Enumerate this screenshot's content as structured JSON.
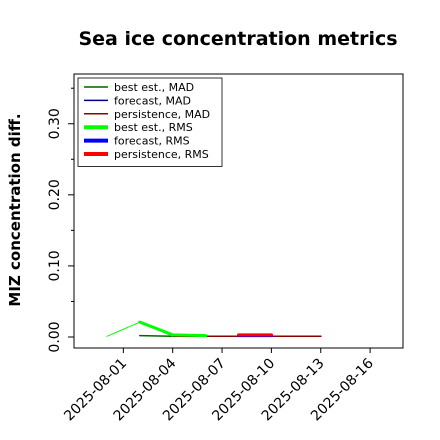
{
  "chart_data": {
    "type": "line",
    "title": "Sea ice concentration metrics",
    "ylabel": "MIZ concentration diff.",
    "xlabel": "",
    "ylim": [
      0.0,
      0.37
    ],
    "xlim": [
      "2025-07-29",
      "2025-08-18"
    ],
    "yticks": [
      "0.00",
      "0.10",
      "0.20",
      "0.30"
    ],
    "xticks": [
      "2025-08-01",
      "2025-08-04",
      "2025-08-07",
      "2025-08-10",
      "2025-08-13",
      "2025-08-16"
    ],
    "highlighted_xtick": "2025-08-07",
    "highlighted_xtick_color": "#008000",
    "grid": false,
    "legend_position": "top-left",
    "series": [
      {
        "name": "best est., MAD",
        "color": "#006400",
        "width": 1.5,
        "x": [
          "2025-08-02",
          "2025-08-04"
        ],
        "y": [
          0.002,
          0.001
        ]
      },
      {
        "name": "forecast,  MAD",
        "color": "#00008b",
        "width": 1.5,
        "x": [
          "2025-08-08",
          "2025-08-13"
        ],
        "y": [
          0.001,
          0.001
        ]
      },
      {
        "name": "persistence, MAD",
        "color": "#8b0000",
        "width": 1.5,
        "x": [
          "2025-08-04",
          "2025-08-13"
        ],
        "y": [
          0.001,
          0.001
        ]
      },
      {
        "name": "best est., RMS",
        "color": "#00ff00",
        "width": 3,
        "x": [
          "2025-08-02",
          "2025-08-04",
          "2025-08-06"
        ],
        "y": [
          0.021,
          0.003,
          0.002
        ]
      },
      {
        "name": "forecast,  RMS",
        "color": "#0000ff",
        "width": 3,
        "x": [
          "2025-08-08",
          "2025-08-10"
        ],
        "y": [
          0.002,
          0.002
        ]
      },
      {
        "name": "persistence, RMS",
        "color": "#ff0000",
        "width": 3,
        "x": [
          "2025-08-08",
          "2025-08-10"
        ],
        "y": [
          0.003,
          0.003
        ]
      },
      {
        "name": "",
        "color": "#00ff00",
        "width": 1,
        "x": [
          "2025-07-31",
          "2025-08-02",
          "2025-08-04"
        ],
        "y": [
          0.001,
          0.021,
          0.001
        ]
      }
    ]
  }
}
